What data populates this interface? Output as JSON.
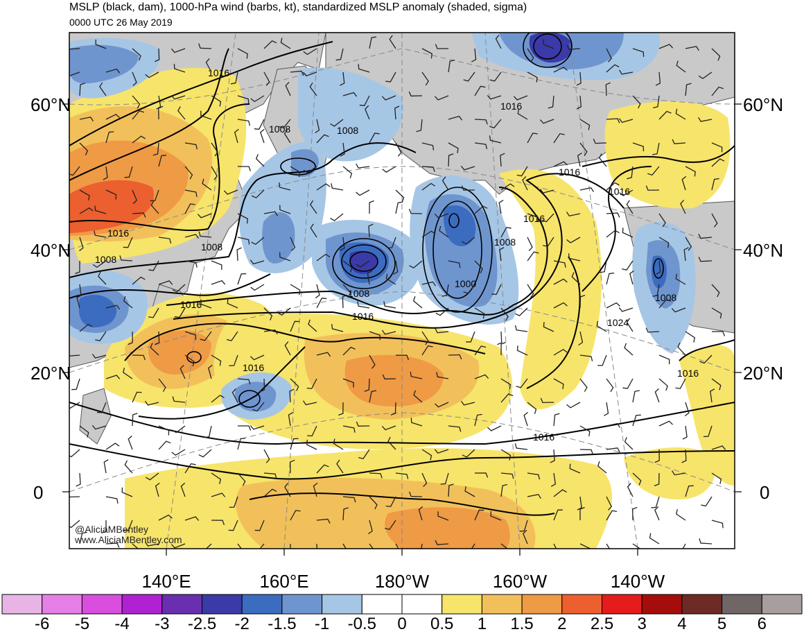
{
  "title": "MSLP (black, dam), 1000-hPa wind (barbs, kt), standardized MSLP anomaly (shaded, sigma)",
  "subtitle": "0000 UTC 26 May 2019",
  "lat_labels": [
    "60°N",
    "40°N",
    "20°N",
    "0"
  ],
  "lon_labels": [
    "140°E",
    "160°E",
    "180°W",
    "160°W",
    "140°W"
  ],
  "contour_labels": [
    "1016",
    "1008",
    "1008",
    "1016",
    "1016",
    "1008",
    "1016",
    "1016",
    "1008",
    "1016",
    "1016",
    "1008",
    "1000",
    "1008",
    "1016",
    "1024",
    "1008",
    "1016",
    "1016"
  ],
  "colorbar": {
    "labels": [
      "-6",
      "-5",
      "-4",
      "-3",
      "-2.5",
      "-2",
      "-1.5",
      "-1",
      "-0.5",
      "0",
      "0.5",
      "1",
      "1.5",
      "2",
      "2.5",
      "3",
      "4",
      "5",
      "6"
    ],
    "colors": [
      "#e8b4e6",
      "#e680e6",
      "#d94ede",
      "#b021d3",
      "#6a2fb0",
      "#3a3aa8",
      "#3c6cc0",
      "#6f95cf",
      "#a6c6e5",
      "#ffffff",
      "#ffffff",
      "#f7e46a",
      "#f2c05a",
      "#ef9a45",
      "#ec5f2f",
      "#e61b1b",
      "#a50d0d",
      "#6e2a24",
      "#706666",
      "#a89e9e"
    ]
  },
  "watermark": {
    "handle": "@AliciaMBentley",
    "site": "www.AliciaMBentley.com"
  }
}
